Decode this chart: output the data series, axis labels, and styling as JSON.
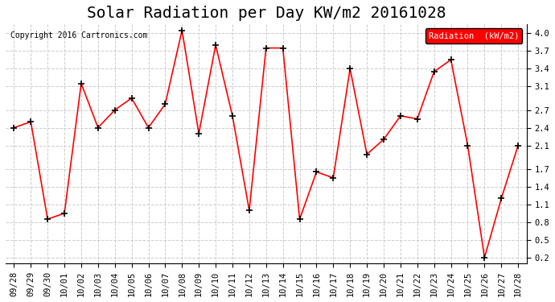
{
  "title": "Solar Radiation per Day KW/m2 20161028",
  "copyright": "Copyright 2016 Cartronics.com",
  "legend_label": "Radiation  (kW/m2)",
  "x_labels": [
    "09/28",
    "09/29",
    "09/30",
    "10/01",
    "10/02",
    "10/03",
    "10/04",
    "10/05",
    "10/06",
    "10/07",
    "10/08",
    "10/09",
    "10/10",
    "10/11",
    "10/12",
    "10/13",
    "10/14",
    "10/15",
    "10/16",
    "10/17",
    "10/18",
    "10/19",
    "10/20",
    "10/21",
    "10/22",
    "10/23",
    "10/24",
    "10/25",
    "10/26",
    "10/27",
    "10/28"
  ],
  "y_values": [
    2.4,
    2.5,
    0.85,
    0.95,
    3.15,
    2.4,
    2.7,
    2.9,
    2.4,
    2.8,
    4.05,
    2.3,
    3.8,
    2.6,
    1.0,
    3.75,
    3.75,
    0.85,
    1.65,
    1.55,
    3.4,
    1.95,
    2.2,
    2.6,
    2.55,
    3.35,
    3.55,
    2.1,
    0.2,
    1.2,
    2.1
  ],
  "line_color": "red",
  "marker": "+",
  "marker_color": "black",
  "bg_color": "#ffffff",
  "grid_color": "#cccccc",
  "ylim": [
    0.1,
    4.15
  ],
  "yticks": [
    0.2,
    0.5,
    0.8,
    1.1,
    1.4,
    1.7,
    2.1,
    2.4,
    2.7,
    3.1,
    3.4,
    3.7,
    4.0
  ],
  "legend_bg": "#ff0000",
  "legend_text_color": "#ffffff",
  "title_fontsize": 14,
  "label_fontsize": 7.5
}
